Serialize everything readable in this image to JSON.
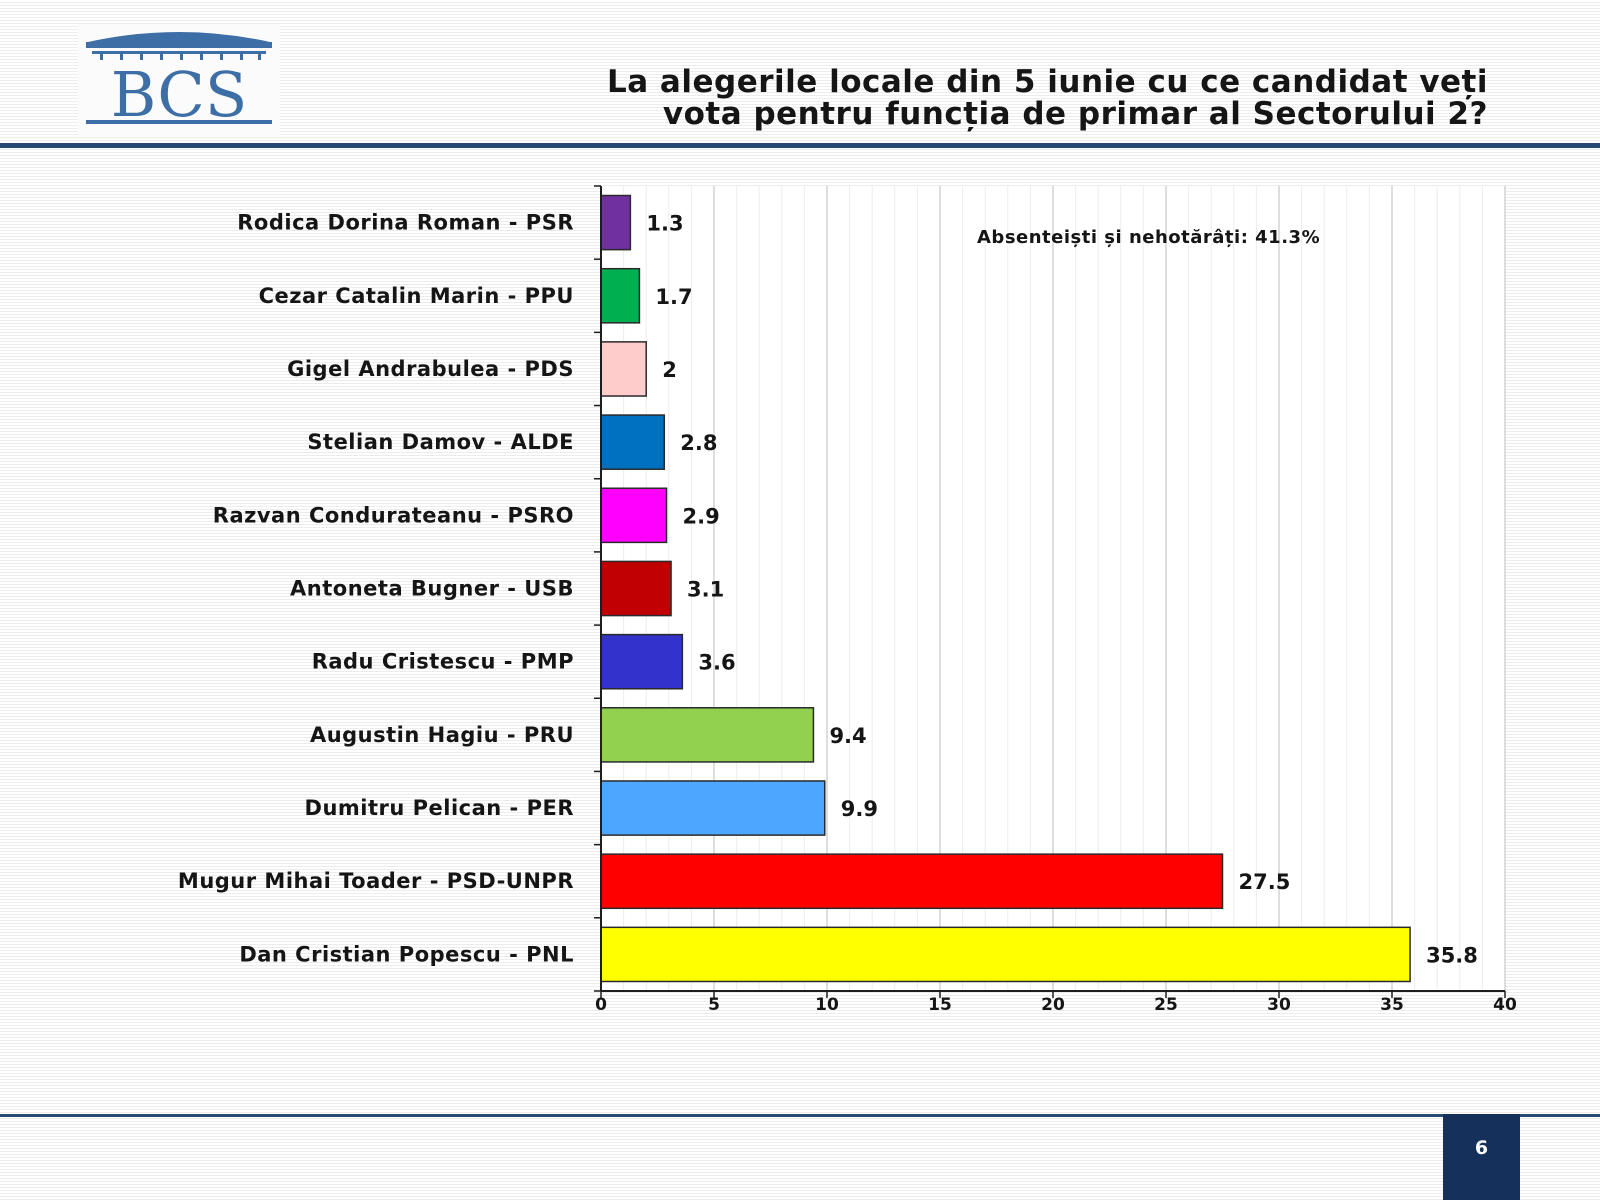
{
  "header": {
    "logo_text": "BCS",
    "title_line1": "La alegerile locale din 5 iunie cu ce candidat veți",
    "title_line2": "vota pentru funcția de primar al Sectorului 2?"
  },
  "chart_data": {
    "type": "bar",
    "orientation": "horizontal",
    "title": "La alegerile locale din 5 iunie cu ce candidat veți vota pentru funcția de primar al Sectorului 2?",
    "categories": [
      "Rodica Dorina Roman - PSR",
      "Cezar Catalin Marin - PPU",
      "Gigel Andrabulea - PDS",
      "Stelian Damov - ALDE",
      "Razvan Condurateanu - PSRO",
      "Antoneta Bugner - USB",
      "Radu Cristescu - PMP",
      "Augustin Hagiu - PRU",
      "Dumitru Pelican - PER",
      "Mugur Mihai Toader - PSD-UNPR",
      "Dan Cristian Popescu - PNL"
    ],
    "values": [
      1.3,
      1.7,
      2,
      2.8,
      2.9,
      3.1,
      3.6,
      9.4,
      9.9,
      27.5,
      35.8
    ],
    "value_labels": [
      "1.3",
      "1.7",
      "2",
      "2.8",
      "2.9",
      "3.1",
      "3.6",
      "9.4",
      "9.9",
      "27.5",
      "35.8"
    ],
    "colors": [
      "#7030a0",
      "#00b050",
      "#ffcccc",
      "#0070c0",
      "#ff00ff",
      "#c00000",
      "#3333cc",
      "#92d050",
      "#4da6ff",
      "#ff0000",
      "#ffff00"
    ],
    "xlim": [
      0,
      40
    ],
    "xticks": [
      0,
      5,
      10,
      15,
      20,
      25,
      30,
      35,
      40
    ],
    "grid": true,
    "xlabel": "",
    "ylabel": "",
    "annotation": "Absenteiști și nehotărâți: 41.3%"
  },
  "footer": {
    "page_number": "6"
  },
  "colors": {
    "brand_navy": "#264b73",
    "page_box": "#15305a",
    "logo_blue": "#3d6ea6"
  }
}
